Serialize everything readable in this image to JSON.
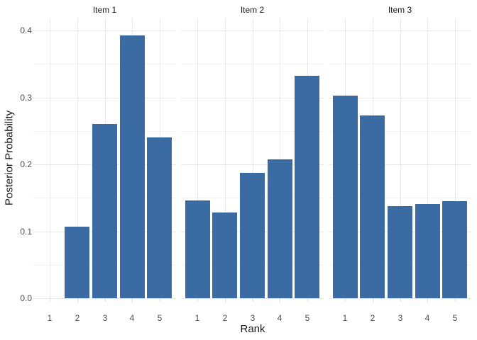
{
  "chart_data": {
    "type": "bar",
    "faceted": true,
    "title": "",
    "xlabel": "Rank",
    "ylabel": "Posterior Probability",
    "categories": [
      "1",
      "2",
      "3",
      "4",
      "5"
    ],
    "facets": [
      {
        "label": "Item 1",
        "values": [
          0.0,
          0.107,
          0.26,
          0.393,
          0.24
        ]
      },
      {
        "label": "Item 2",
        "values": [
          0.146,
          0.128,
          0.187,
          0.207,
          0.332
        ]
      },
      {
        "label": "Item 3",
        "values": [
          0.303,
          0.273,
          0.138,
          0.141,
          0.145
        ]
      }
    ],
    "y_ticks": [
      "0.0",
      "0.1",
      "0.2",
      "0.3",
      "0.4"
    ],
    "y_minor_step": 0.05,
    "ylim": [
      0,
      0.418
    ],
    "grid": "horizontal major+minor, vertical major at each rank",
    "legend": "none",
    "colors": {
      "bar": "#3A6BA3",
      "grid_major": "#E6E6E6",
      "grid_minor": "#F2F2F2",
      "tick_mark": "#D9D9D9",
      "tick_label": "#4D4D4D",
      "title_text": "#1A1A1A",
      "background": "#FFFFFF"
    }
  }
}
